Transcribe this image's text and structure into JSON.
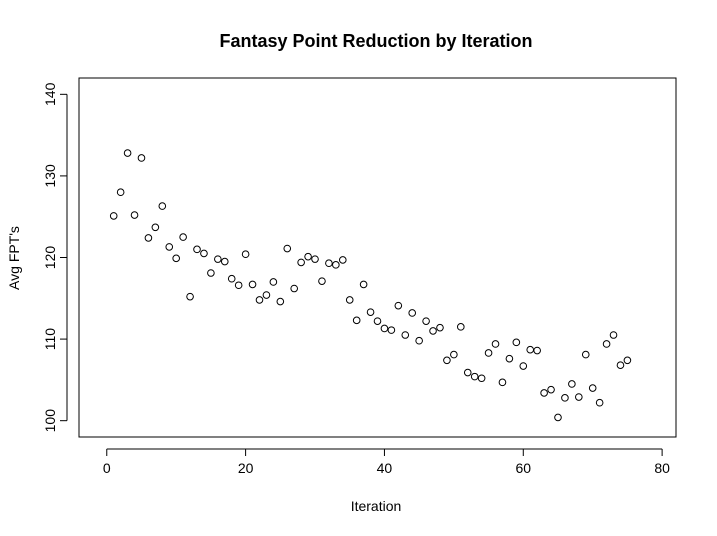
{
  "chart_data": {
    "type": "scatter",
    "title": "Fantasy Point Reduction by Iteration",
    "xlabel": "Iteration",
    "ylabel": "Avg FPT's",
    "xlim": [
      -4,
      82
    ],
    "ylim": [
      98,
      142
    ],
    "xticks": [
      0,
      20,
      40,
      60,
      80
    ],
    "yticks": [
      100,
      110,
      120,
      130,
      140
    ],
    "xtick_labels": [
      "0",
      "20",
      "40",
      "60",
      "80"
    ],
    "ytick_labels": [
      "100",
      "110",
      "120",
      "130",
      "140"
    ],
    "grid": false,
    "marker": "open-circle",
    "color": "#000000",
    "points": [
      {
        "x": 1,
        "y": 125.1
      },
      {
        "x": 2,
        "y": 128.0
      },
      {
        "x": 3,
        "y": 132.8
      },
      {
        "x": 4,
        "y": 125.2
      },
      {
        "x": 5,
        "y": 132.2
      },
      {
        "x": 6,
        "y": 122.4
      },
      {
        "x": 7,
        "y": 123.7
      },
      {
        "x": 8,
        "y": 126.3
      },
      {
        "x": 9,
        "y": 121.3
      },
      {
        "x": 10,
        "y": 119.9
      },
      {
        "x": 11,
        "y": 122.5
      },
      {
        "x": 12,
        "y": 115.2
      },
      {
        "x": 13,
        "y": 121.0
      },
      {
        "x": 14,
        "y": 120.5
      },
      {
        "x": 15,
        "y": 118.1
      },
      {
        "x": 16,
        "y": 119.8
      },
      {
        "x": 17,
        "y": 119.5
      },
      {
        "x": 18,
        "y": 117.4
      },
      {
        "x": 19,
        "y": 116.6
      },
      {
        "x": 20,
        "y": 120.4
      },
      {
        "x": 21,
        "y": 116.7
      },
      {
        "x": 22,
        "y": 114.8
      },
      {
        "x": 23,
        "y": 115.4
      },
      {
        "x": 24,
        "y": 117.0
      },
      {
        "x": 25,
        "y": 114.6
      },
      {
        "x": 26,
        "y": 121.1
      },
      {
        "x": 27,
        "y": 116.2
      },
      {
        "x": 28,
        "y": 119.4
      },
      {
        "x": 29,
        "y": 120.1
      },
      {
        "x": 30,
        "y": 119.8
      },
      {
        "x": 31,
        "y": 117.1
      },
      {
        "x": 32,
        "y": 119.3
      },
      {
        "x": 33,
        "y": 119.1
      },
      {
        "x": 34,
        "y": 119.7
      },
      {
        "x": 35,
        "y": 114.8
      },
      {
        "x": 36,
        "y": 112.3
      },
      {
        "x": 37,
        "y": 116.7
      },
      {
        "x": 38,
        "y": 113.3
      },
      {
        "x": 39,
        "y": 112.2
      },
      {
        "x": 40,
        "y": 111.3
      },
      {
        "x": 41,
        "y": 111.1
      },
      {
        "x": 42,
        "y": 114.1
      },
      {
        "x": 43,
        "y": 110.5
      },
      {
        "x": 44,
        "y": 113.2
      },
      {
        "x": 45,
        "y": 109.8
      },
      {
        "x": 46,
        "y": 112.2
      },
      {
        "x": 47,
        "y": 111.0
      },
      {
        "x": 48,
        "y": 111.4
      },
      {
        "x": 49,
        "y": 107.4
      },
      {
        "x": 50,
        "y": 108.1
      },
      {
        "x": 51,
        "y": 111.5
      },
      {
        "x": 52,
        "y": 105.9
      },
      {
        "x": 53,
        "y": 105.4
      },
      {
        "x": 54,
        "y": 105.2
      },
      {
        "x": 55,
        "y": 108.3
      },
      {
        "x": 56,
        "y": 109.4
      },
      {
        "x": 57,
        "y": 104.7
      },
      {
        "x": 58,
        "y": 107.6
      },
      {
        "x": 59,
        "y": 109.6
      },
      {
        "x": 60,
        "y": 106.7
      },
      {
        "x": 61,
        "y": 108.7
      },
      {
        "x": 62,
        "y": 108.6
      },
      {
        "x": 63,
        "y": 103.4
      },
      {
        "x": 64,
        "y": 103.8
      },
      {
        "x": 65,
        "y": 100.4
      },
      {
        "x": 66,
        "y": 102.8
      },
      {
        "x": 67,
        "y": 104.5
      },
      {
        "x": 68,
        "y": 102.9
      },
      {
        "x": 69,
        "y": 108.1
      },
      {
        "x": 70,
        "y": 104.0
      },
      {
        "x": 71,
        "y": 102.2
      },
      {
        "x": 72,
        "y": 109.4
      },
      {
        "x": 73,
        "y": 110.5
      },
      {
        "x": 74,
        "y": 106.8
      },
      {
        "x": 75,
        "y": 107.4
      }
    ]
  }
}
